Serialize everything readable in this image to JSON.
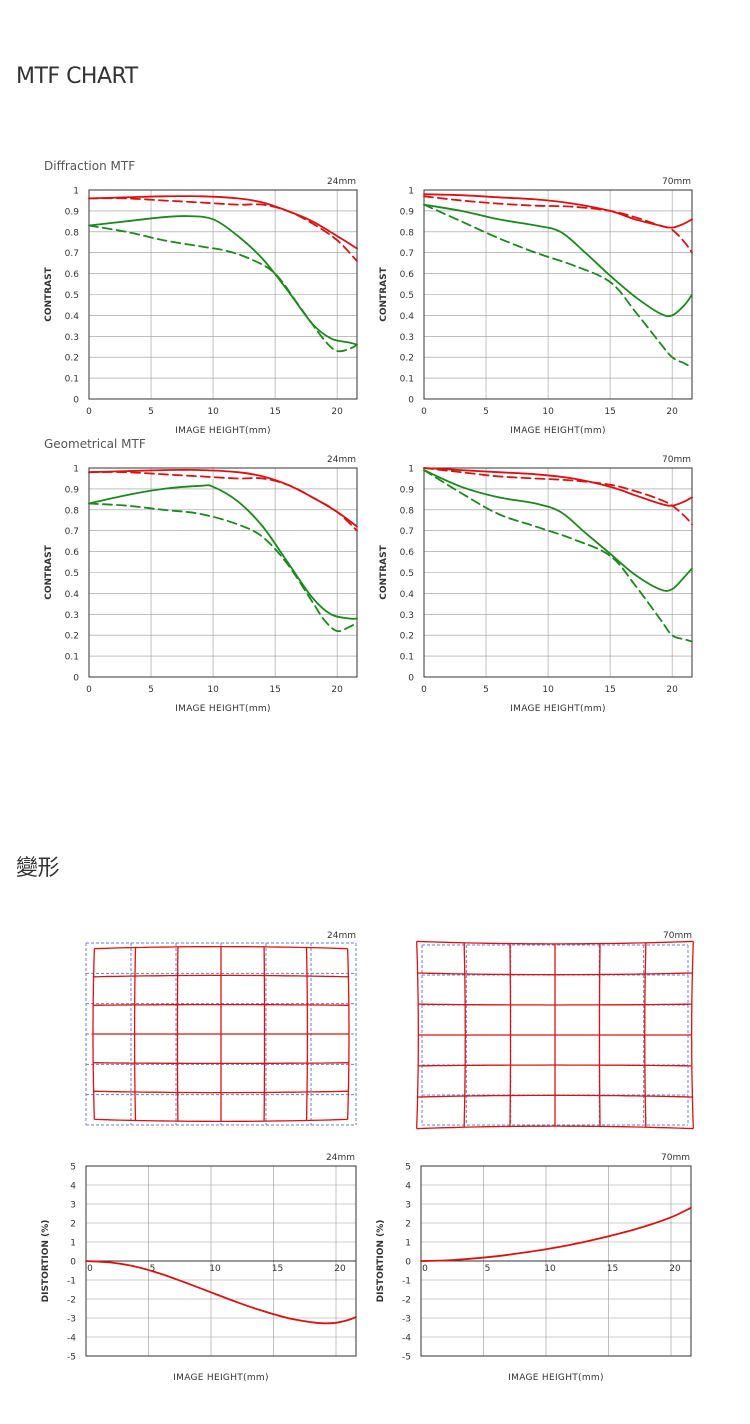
{
  "page": {
    "mtf_title": "MTF CHART",
    "distortion_title": "變形"
  },
  "mtf_groups": [
    {
      "title": "Diffraction MTF"
    },
    {
      "title": "Geometrical MTF"
    }
  ],
  "colors": {
    "sagittal": "#e01010",
    "meridional": "#1a8a1a",
    "grid": "#999999",
    "axis": "#333333",
    "grid_guide": "#6b7fd6"
  },
  "chart_data": [
    {
      "id": "diffraction-24mm",
      "type": "line",
      "title": "24mm",
      "group": "Diffraction MTF",
      "xlabel": "IMAGE HEIGHT(mm)",
      "ylabel": "CONTRAST",
      "xlim": [
        0,
        21.6
      ],
      "ylim": [
        0,
        1
      ],
      "xticks": [
        0,
        5,
        10,
        15,
        20
      ],
      "yticks": [
        0,
        0.1,
        0.2,
        0.3,
        0.4,
        0.5,
        0.6,
        0.7,
        0.8,
        0.9,
        1
      ],
      "ytick_labels": [
        "0",
        "0.1",
        "0.2",
        "0.3",
        "0.4",
        "0.5",
        "0.6",
        "0.7",
        "0.8",
        "0.9",
        "1"
      ],
      "series": [
        {
          "name": "sagittal-solid",
          "color": "red",
          "dash": false,
          "x": [
            0,
            3,
            6,
            9,
            12,
            14,
            16,
            18,
            20,
            21.6
          ],
          "y": [
            0.96,
            0.965,
            0.97,
            0.97,
            0.96,
            0.94,
            0.9,
            0.85,
            0.78,
            0.72
          ]
        },
        {
          "name": "sagittal-dashed",
          "color": "red",
          "dash": true,
          "x": [
            0,
            3,
            6,
            9,
            12,
            14,
            16,
            18,
            20,
            21.6
          ],
          "y": [
            0.96,
            0.96,
            0.95,
            0.94,
            0.93,
            0.93,
            0.9,
            0.84,
            0.76,
            0.66
          ]
        },
        {
          "name": "meridional-solid",
          "color": "green",
          "dash": false,
          "x": [
            0,
            3,
            6,
            8,
            10,
            12,
            14,
            16,
            18,
            19.5,
            21,
            21.6
          ],
          "y": [
            0.83,
            0.85,
            0.87,
            0.875,
            0.86,
            0.78,
            0.67,
            0.52,
            0.36,
            0.29,
            0.27,
            0.26
          ]
        },
        {
          "name": "meridional-dashed",
          "color": "green",
          "dash": true,
          "x": [
            0,
            3,
            6,
            9,
            11,
            13,
            15,
            17,
            19,
            20,
            21,
            21.6
          ],
          "y": [
            0.83,
            0.8,
            0.76,
            0.73,
            0.71,
            0.67,
            0.6,
            0.44,
            0.28,
            0.23,
            0.24,
            0.26
          ]
        }
      ]
    },
    {
      "id": "diffraction-70mm",
      "type": "line",
      "title": "70mm",
      "group": "Diffraction MTF",
      "xlabel": "IMAGE HEIGHT(mm)",
      "ylabel": "CONTRAST",
      "xlim": [
        0,
        21.6
      ],
      "ylim": [
        0,
        1
      ],
      "xticks": [
        0,
        5,
        10,
        15,
        20
      ],
      "yticks": [
        0,
        0.1,
        0.2,
        0.3,
        0.4,
        0.5,
        0.6,
        0.7,
        0.8,
        0.9,
        1
      ],
      "ytick_labels": [
        "0",
        "0.1",
        "0.2",
        "0.3",
        "0.4",
        "0.5",
        "0.6",
        "0.7",
        "0.8",
        "0.9",
        "1"
      ],
      "series": [
        {
          "name": "sagittal-solid",
          "color": "red",
          "dash": false,
          "x": [
            0,
            3,
            6,
            9,
            12,
            15,
            17,
            19,
            20,
            21,
            21.6
          ],
          "y": [
            0.98,
            0.975,
            0.965,
            0.955,
            0.935,
            0.9,
            0.86,
            0.83,
            0.82,
            0.84,
            0.86
          ]
        },
        {
          "name": "sagittal-dashed",
          "color": "red",
          "dash": true,
          "x": [
            0,
            3,
            6,
            9,
            12,
            15,
            17,
            19,
            20,
            21,
            21.6
          ],
          "y": [
            0.97,
            0.95,
            0.935,
            0.925,
            0.92,
            0.9,
            0.87,
            0.83,
            0.81,
            0.75,
            0.7
          ]
        },
        {
          "name": "meridional-solid",
          "color": "green",
          "dash": false,
          "x": [
            0,
            3,
            6,
            9,
            11,
            13,
            15,
            17,
            19,
            20,
            21,
            21.6
          ],
          "y": [
            0.93,
            0.9,
            0.86,
            0.83,
            0.8,
            0.7,
            0.59,
            0.49,
            0.41,
            0.4,
            0.45,
            0.5
          ]
        },
        {
          "name": "meridional-dashed",
          "color": "green",
          "dash": true,
          "x": [
            0,
            3,
            6,
            9,
            12,
            15,
            17,
            19,
            20,
            21,
            21.6
          ],
          "y": [
            0.93,
            0.85,
            0.77,
            0.7,
            0.64,
            0.56,
            0.42,
            0.27,
            0.2,
            0.17,
            0.15
          ]
        }
      ]
    },
    {
      "id": "geometrical-24mm",
      "type": "line",
      "title": "24mm",
      "group": "Geometrical MTF",
      "xlabel": "IMAGE HEIGHT(mm)",
      "ylabel": "CONTRAST",
      "xlim": [
        0,
        21.6
      ],
      "ylim": [
        0,
        1
      ],
      "xticks": [
        0,
        5,
        10,
        15,
        20
      ],
      "yticks": [
        0,
        0.1,
        0.2,
        0.3,
        0.4,
        0.5,
        0.6,
        0.7,
        0.8,
        0.9,
        1
      ],
      "ytick_labels": [
        "0",
        "0.1",
        "0.2",
        "0.3",
        "0.4",
        "0.5",
        "0.6",
        "0.7",
        "0.8",
        "0.9",
        "1"
      ],
      "series": [
        {
          "name": "sagittal-solid",
          "color": "red",
          "dash": false,
          "x": [
            0,
            3,
            6,
            9,
            12,
            14,
            16,
            18,
            20,
            21.6
          ],
          "y": [
            0.98,
            0.985,
            0.99,
            0.99,
            0.98,
            0.96,
            0.92,
            0.86,
            0.79,
            0.72
          ]
        },
        {
          "name": "sagittal-dashed",
          "color": "red",
          "dash": true,
          "x": [
            0,
            3,
            6,
            9,
            12,
            14,
            16,
            18,
            20,
            21.6
          ],
          "y": [
            0.98,
            0.98,
            0.97,
            0.96,
            0.95,
            0.95,
            0.92,
            0.86,
            0.79,
            0.7
          ]
        },
        {
          "name": "meridional-solid",
          "color": "green",
          "dash": false,
          "x": [
            0,
            3,
            6,
            9,
            10,
            12,
            14,
            16,
            18,
            19.5,
            21,
            21.6
          ],
          "y": [
            0.83,
            0.87,
            0.9,
            0.915,
            0.91,
            0.84,
            0.72,
            0.55,
            0.38,
            0.3,
            0.28,
            0.28
          ]
        },
        {
          "name": "meridional-dashed",
          "color": "green",
          "dash": true,
          "x": [
            0,
            3,
            6,
            9,
            12,
            14,
            16,
            18,
            19,
            20,
            21,
            21.6
          ],
          "y": [
            0.83,
            0.82,
            0.8,
            0.78,
            0.73,
            0.67,
            0.54,
            0.36,
            0.27,
            0.22,
            0.24,
            0.26
          ]
        }
      ]
    },
    {
      "id": "geometrical-70mm",
      "type": "line",
      "title": "70mm",
      "group": "Geometrical MTF",
      "xlabel": "IMAGE HEIGHT(mm)",
      "ylabel": "CONTRAST",
      "xlim": [
        0,
        21.6
      ],
      "ylim": [
        0,
        1
      ],
      "xticks": [
        0,
        5,
        10,
        15,
        20
      ],
      "yticks": [
        0,
        0.1,
        0.2,
        0.3,
        0.4,
        0.5,
        0.6,
        0.7,
        0.8,
        0.9,
        1
      ],
      "ytick_labels": [
        "0",
        "0.1",
        "0.2",
        "0.3",
        "0.4",
        "0.5",
        "0.6",
        "0.7",
        "0.8",
        "0.9",
        "1"
      ],
      "series": [
        {
          "name": "sagittal-solid",
          "color": "red",
          "dash": false,
          "x": [
            0,
            3,
            6,
            9,
            12,
            15,
            17,
            19,
            20,
            21,
            21.6
          ],
          "y": [
            1,
            0.99,
            0.98,
            0.97,
            0.95,
            0.91,
            0.87,
            0.83,
            0.82,
            0.84,
            0.86
          ]
        },
        {
          "name": "sagittal-dashed",
          "color": "red",
          "dash": true,
          "x": [
            0,
            3,
            6,
            9,
            12,
            15,
            17,
            19,
            20,
            21,
            21.6
          ],
          "y": [
            1,
            0.98,
            0.96,
            0.95,
            0.94,
            0.92,
            0.89,
            0.85,
            0.82,
            0.77,
            0.73
          ]
        },
        {
          "name": "meridional-solid",
          "color": "green",
          "dash": false,
          "x": [
            0,
            3,
            6,
            9,
            11,
            13,
            15,
            17,
            19,
            20,
            21,
            21.6
          ],
          "y": [
            0.99,
            0.91,
            0.86,
            0.83,
            0.79,
            0.69,
            0.59,
            0.49,
            0.42,
            0.42,
            0.48,
            0.52
          ]
        },
        {
          "name": "meridional-dashed",
          "color": "green",
          "dash": true,
          "x": [
            0,
            3,
            6,
            9,
            12,
            15,
            17,
            19,
            20,
            21,
            21.6
          ],
          "y": [
            0.99,
            0.88,
            0.78,
            0.72,
            0.66,
            0.58,
            0.44,
            0.28,
            0.2,
            0.18,
            0.17
          ]
        }
      ]
    },
    {
      "id": "distortion-24mm",
      "type": "line",
      "title": "24mm",
      "xlabel": "IMAGE HEIGHT(mm)",
      "ylabel": "DISTORTION (%)",
      "xlim": [
        0,
        21.6
      ],
      "ylim": [
        -5,
        5
      ],
      "xticks": [
        0,
        5,
        10,
        15,
        20
      ],
      "yticks": [
        -5,
        -4,
        -3,
        -2,
        -1,
        0,
        1,
        2,
        3,
        4,
        5
      ],
      "ytick_labels": [
        "-5",
        "-4",
        "-3",
        "-2",
        "-1",
        "0",
        "1",
        "2",
        "3",
        "4",
        "5"
      ],
      "series": [
        {
          "name": "distortion",
          "color": "red",
          "dash": false,
          "x": [
            0,
            2,
            4,
            6,
            8,
            10,
            12,
            14,
            16,
            18,
            19,
            20,
            21,
            21.6
          ],
          "y": [
            0,
            -0.08,
            -0.3,
            -0.68,
            -1.15,
            -1.65,
            -2.15,
            -2.6,
            -2.98,
            -3.22,
            -3.28,
            -3.25,
            -3.1,
            -2.95
          ]
        }
      ]
    },
    {
      "id": "distortion-70mm",
      "type": "line",
      "title": "70mm",
      "xlabel": "IMAGE HEIGHT(mm)",
      "ylabel": "DISTORTION (%)",
      "xlim": [
        0,
        21.6
      ],
      "ylim": [
        -5,
        5
      ],
      "xticks": [
        0,
        5,
        10,
        15,
        20
      ],
      "yticks": [
        -5,
        -4,
        -3,
        -2,
        -1,
        0,
        1,
        2,
        3,
        4,
        5
      ],
      "ytick_labels": [
        "-5",
        "-4",
        "-3",
        "-2",
        "-1",
        "0",
        "1",
        "2",
        "3",
        "4",
        "5"
      ],
      "series": [
        {
          "name": "distortion",
          "color": "red",
          "dash": false,
          "x": [
            0,
            2,
            4,
            6,
            8,
            10,
            12,
            14,
            16,
            18,
            20,
            21.6
          ],
          "y": [
            0,
            0.03,
            0.12,
            0.25,
            0.42,
            0.62,
            0.86,
            1.14,
            1.47,
            1.84,
            2.3,
            2.8
          ]
        }
      ]
    }
  ],
  "grid_diagrams": [
    {
      "title": "24mm",
      "distortion": "barrel"
    },
    {
      "title": "70mm",
      "distortion": "pincushion"
    }
  ]
}
